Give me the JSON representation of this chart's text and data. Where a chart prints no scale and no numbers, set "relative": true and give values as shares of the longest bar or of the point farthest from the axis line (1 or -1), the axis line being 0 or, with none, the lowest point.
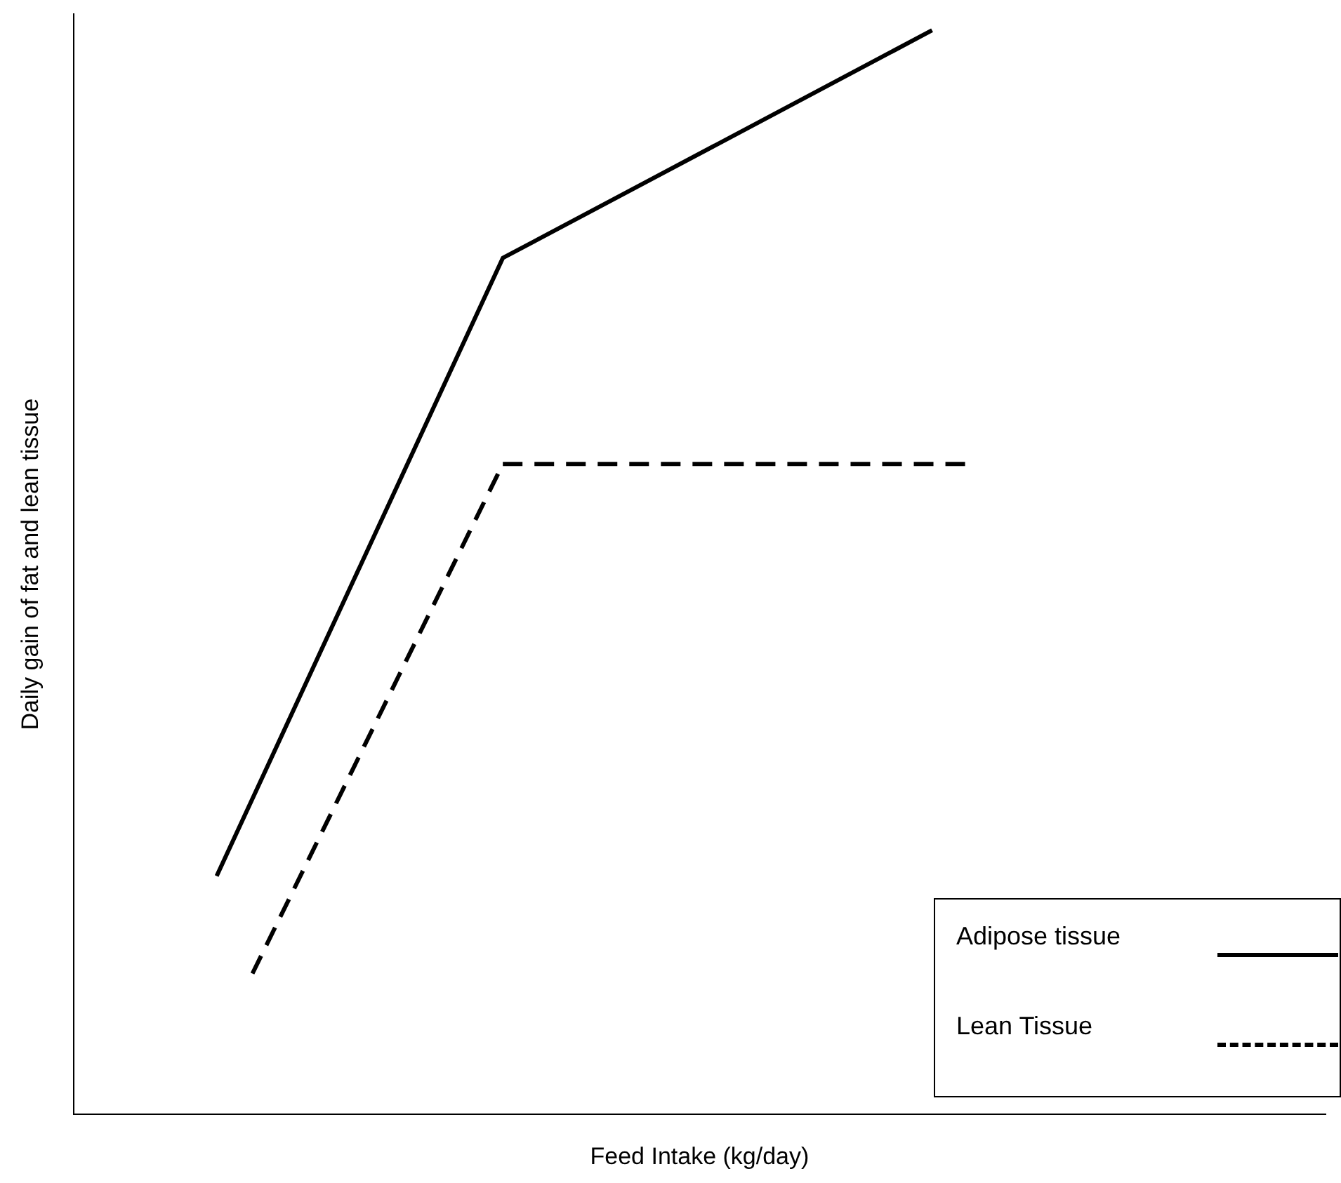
{
  "chart_data": {
    "type": "line",
    "relative": true,
    "xlabel": "Feed Intake (kg/day)",
    "ylabel": "Daily gain of fat and lean tissue",
    "grid": false,
    "legend": "bottom right",
    "marker": "none",
    "categories": [
      null,
      null,
      null,
      null,
      null,
      null,
      null,
      null,
      null,
      null,
      null,
      null,
      null,
      null,
      null,
      null,
      null,
      null,
      null,
      null,
      null,
      null,
      null,
      null,
      null,
      null,
      null,
      null,
      null,
      null,
      null,
      null,
      null,
      null,
      null,
      null
    ],
    "series": [
      {
        "name": "Adipose tissue",
        "color": "#000000",
        "line_style": "solid",
        "values": [
          null,
          null,
          null,
          null,
          0.22,
          null,
          null,
          null,
          null,
          null,
          null,
          null,
          0.79,
          null,
          null,
          null,
          null,
          null,
          null,
          null,
          null,
          null,
          null,
          null,
          1.0,
          null,
          null,
          null,
          null,
          null,
          null,
          null,
          null,
          null,
          null,
          null
        ]
      },
      {
        "name": "Lean Tissue",
        "color": "#000000",
        "line_style": "dashed",
        "values": [
          null,
          null,
          null,
          null,
          null,
          0.13,
          null,
          null,
          null,
          null,
          null,
          null,
          0.6,
          null,
          null,
          null,
          null,
          null,
          null,
          null,
          null,
          null,
          null,
          null,
          null,
          0.6,
          null,
          null,
          null,
          null,
          null,
          null,
          null,
          null,
          null,
          null
        ]
      }
    ]
  }
}
